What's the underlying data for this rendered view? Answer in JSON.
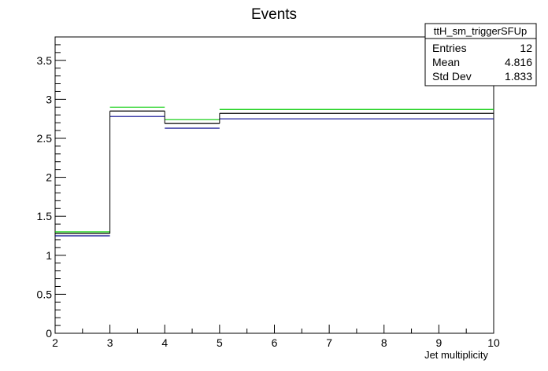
{
  "chart_data": {
    "type": "histogram",
    "title": "Events",
    "xlabel": "Jet multiplicity",
    "ylabel": "",
    "xlim": [
      2,
      10
    ],
    "ylim": [
      0,
      3.8
    ],
    "x_ticks": [
      2,
      3,
      4,
      5,
      6,
      7,
      8,
      9,
      10
    ],
    "x_tick_labels": [
      "2",
      "3",
      "4",
      "5",
      "6",
      "7",
      "8",
      "9",
      "10"
    ],
    "y_ticks": [
      0,
      0.5,
      1,
      1.5,
      2,
      2.5,
      3,
      3.5
    ],
    "y_tick_labels": [
      "0",
      "0.5",
      "1",
      "1.5",
      "2",
      "2.5",
      "3",
      "3.5"
    ],
    "grid": false,
    "bin_edges": [
      2,
      3,
      4,
      5,
      10
    ],
    "series": [
      {
        "color": "#00cc00",
        "values": [
          1.3,
          2.9,
          2.74,
          2.87
        ]
      },
      {
        "color": "#000000",
        "values": [
          1.28,
          2.85,
          2.69,
          2.82
        ]
      },
      {
        "color": "#00008b",
        "values": [
          1.25,
          2.78,
          2.63,
          2.75
        ]
      }
    ],
    "stats_box": {
      "title": "ttH_sm_triggerSFUp",
      "position": "top-right",
      "rows": [
        {
          "label": "Entries",
          "value": "12"
        },
        {
          "label": "Mean",
          "value": "4.816"
        },
        {
          "label": "Std Dev",
          "value": "1.833"
        }
      ]
    }
  }
}
